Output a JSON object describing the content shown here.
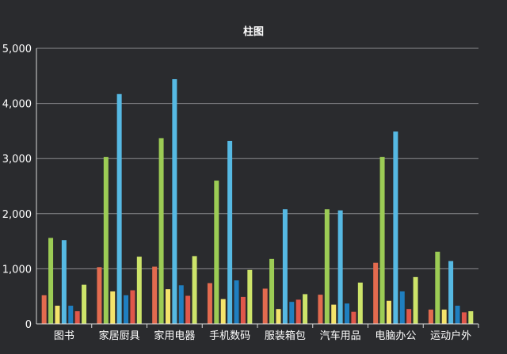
{
  "chart_data": {
    "type": "bar",
    "title": "柱图",
    "xlabel": "",
    "ylabel": "",
    "ylim": [
      0,
      5000
    ],
    "yticks": [
      "0",
      "1,000",
      "2,000",
      "3,000",
      "4,000",
      "5,000"
    ],
    "ytick_values": [
      0,
      1000,
      2000,
      3000,
      4000,
      5000
    ],
    "grid": true,
    "legend": "none",
    "categories": [
      "图书",
      "家居厨具",
      "家用电器",
      "手机数码",
      "服装箱包",
      "汽车用品",
      "电脑办公",
      "运动户外"
    ],
    "series": [
      {
        "color": "#e36b4f",
        "values": [
          520,
          1030,
          1040,
          740,
          640,
          530,
          1110,
          260
        ]
      },
      {
        "color": "#9ccc55",
        "values": [
          1560,
          3030,
          3370,
          2600,
          1180,
          2080,
          3030,
          1310
        ]
      },
      {
        "color": "#f4e36b",
        "values": [
          330,
          590,
          630,
          450,
          270,
          350,
          420,
          260
        ]
      },
      {
        "color": "#56b9e3",
        "values": [
          1520,
          4170,
          4440,
          3320,
          2080,
          2060,
          3490,
          1140
        ]
      },
      {
        "color": "#1f7fc0",
        "values": [
          330,
          520,
          700,
          790,
          400,
          370,
          590,
          330
        ]
      },
      {
        "color": "#e0574a",
        "values": [
          230,
          610,
          510,
          490,
          440,
          220,
          270,
          210
        ]
      },
      {
        "color": "#cde46a",
        "values": [
          710,
          1220,
          1230,
          980,
          540,
          750,
          850,
          230
        ]
      }
    ]
  }
}
